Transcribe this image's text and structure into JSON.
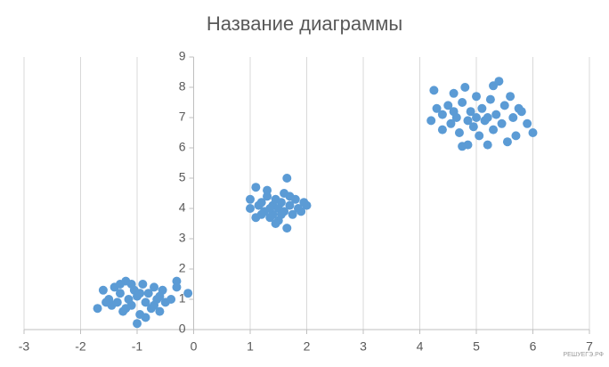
{
  "chart_data": {
    "type": "scatter",
    "title": "Название диаграммы",
    "color": "#5b9bd5",
    "grid": true,
    "watermark": "РЕШУЕГЭ.РФ",
    "xlim": [
      -3,
      7
    ],
    "xticks": [
      -3,
      -2,
      -1,
      0,
      1,
      2,
      3,
      4,
      5,
      6,
      7
    ],
    "ylim": [
      0,
      9
    ],
    "yticks": [
      0,
      1,
      2,
      3,
      4,
      5,
      6,
      7,
      8,
      9
    ],
    "x": [
      -1.7,
      -1.6,
      -1.5,
      -1.45,
      -1.4,
      -1.3,
      -1.25,
      -1.2,
      -1.15,
      -1.1,
      -1.05,
      -1.0,
      -1.0,
      -0.95,
      -0.9,
      -0.85,
      -0.8,
      -0.75,
      -0.7,
      -0.65,
      -0.6,
      -0.55,
      -0.5,
      -0.3,
      -0.3,
      -0.1,
      -1.35,
      -1.2,
      -0.95,
      -0.85,
      -1.55,
      -1.1,
      -0.7,
      -1.3,
      -0.6,
      -0.4,
      1.0,
      1.0,
      1.1,
      1.1,
      1.2,
      1.25,
      1.3,
      1.3,
      1.35,
      1.4,
      1.4,
      1.45,
      1.5,
      1.5,
      1.55,
      1.6,
      1.6,
      1.65,
      1.65,
      1.7,
      1.75,
      1.8,
      1.85,
      1.9,
      2.0,
      1.2,
      1.35,
      1.55,
      1.7,
      1.95,
      1.15,
      1.45,
      4.2,
      4.25,
      4.3,
      4.4,
      4.4,
      4.5,
      4.55,
      4.6,
      4.65,
      4.7,
      4.75,
      4.75,
      4.8,
      4.85,
      4.85,
      4.9,
      4.95,
      5.0,
      5.0,
      5.05,
      5.1,
      5.15,
      5.2,
      5.25,
      5.3,
      5.3,
      5.35,
      5.4,
      5.45,
      5.5,
      5.55,
      5.6,
      5.65,
      5.7,
      5.75,
      5.8,
      5.9,
      6.0,
      5.2,
      4.6
    ],
    "values": [
      0.7,
      1.3,
      1.0,
      0.8,
      1.4,
      1.2,
      0.6,
      1.6,
      1.0,
      0.8,
      1.3,
      0.2,
      1.1,
      0.5,
      1.5,
      0.9,
      1.2,
      0.7,
      1.4,
      1.0,
      0.6,
      1.3,
      0.9,
      1.6,
      1.4,
      1.2,
      0.9,
      0.7,
      1.2,
      0.4,
      0.9,
      1.5,
      0.8,
      1.5,
      1.1,
      1.0,
      4.3,
      4.0,
      4.7,
      3.7,
      4.2,
      3.9,
      4.6,
      4.4,
      3.7,
      4.1,
      3.8,
      4.3,
      3.6,
      4.0,
      4.2,
      4.5,
      3.9,
      5.0,
      3.35,
      4.1,
      3.8,
      4.3,
      4.0,
      3.9,
      4.1,
      3.8,
      4.0,
      3.8,
      4.4,
      4.2,
      4.1,
      3.5,
      6.9,
      7.9,
      7.3,
      7.1,
      6.6,
      7.4,
      6.8,
      7.8,
      7.0,
      6.5,
      6.05,
      7.5,
      8.0,
      6.9,
      6.1,
      7.2,
      6.7,
      7.7,
      7.0,
      6.4,
      7.3,
      6.9,
      6.1,
      7.6,
      8.05,
      6.6,
      7.1,
      8.2,
      6.8,
      7.4,
      6.2,
      7.7,
      7.0,
      6.4,
      7.3,
      7.2,
      6.8,
      6.5,
      7.0,
      7.2
    ]
  }
}
